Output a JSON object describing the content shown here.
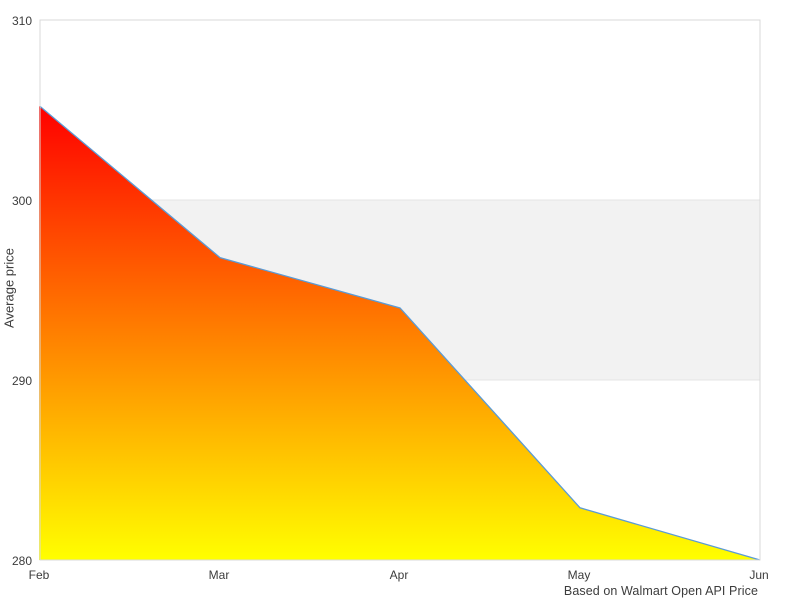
{
  "page": {
    "background_color": "#ffffff"
  },
  "chart_data": {
    "type": "area",
    "title": "",
    "categories": [
      "Feb",
      "Mar",
      "Apr",
      "May",
      "Jun"
    ],
    "values": [
      305.2,
      296.8,
      294.0,
      282.9,
      280.0
    ],
    "xlabel": "",
    "ylabel": "Average price",
    "ylim": [
      280,
      310
    ],
    "yticks": [
      280,
      290,
      300,
      310
    ],
    "plot_band": {
      "from": 290,
      "to": 300,
      "fill_color": "#f2f2f2",
      "border_color": "#e4e4e4"
    },
    "caption": "Based on Walmart Open API Price",
    "line_color": "#5b9bd5",
    "fill_gradient_top": "#ff0000",
    "fill_gradient_bottom": "#ffff00",
    "plot_border_color": "#d9d9d9",
    "text_color": "#3c3c3c",
    "grid": false,
    "legend": false
  }
}
